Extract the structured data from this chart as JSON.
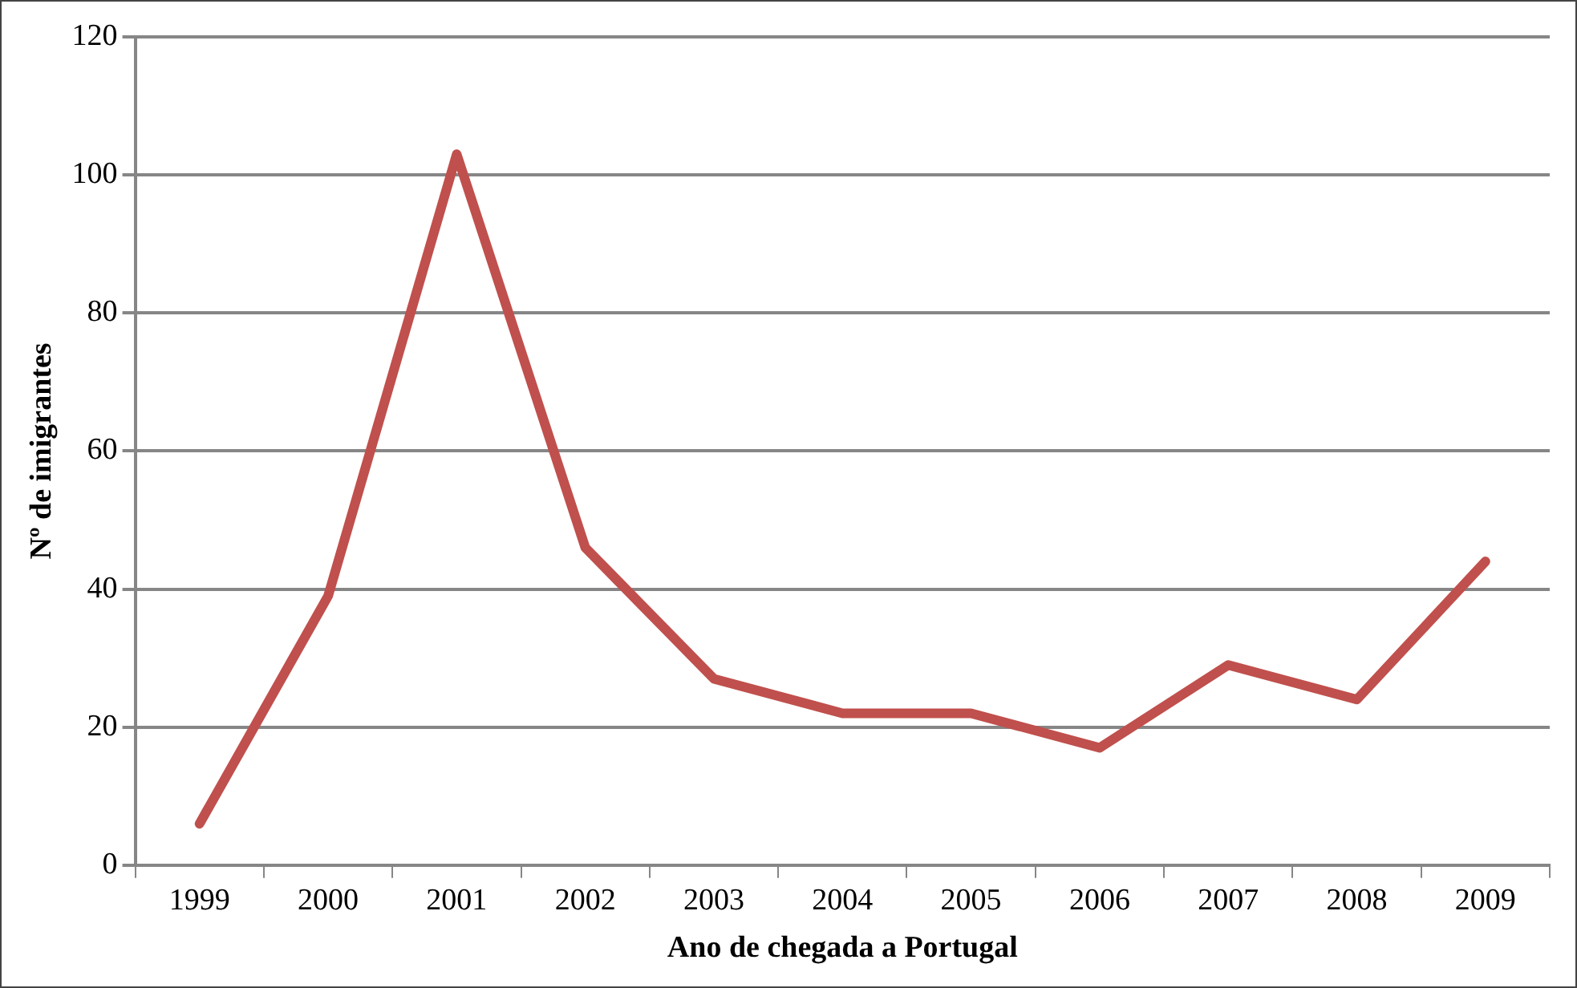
{
  "chart_data": {
    "type": "line",
    "xlabel": "Ano de chegada a Portugal",
    "ylabel": "Nº de imigrantes",
    "categories": [
      "1999",
      "2000",
      "2001",
      "2002",
      "2003",
      "2004",
      "2005",
      "2006",
      "2007",
      "2008",
      "2009"
    ],
    "series": [
      {
        "color": "#c0504d",
        "values": [
          6,
          39,
          103,
          46,
          27,
          22,
          22,
          17,
          29,
          24,
          44
        ]
      }
    ],
    "ylim": [
      0,
      120
    ],
    "yticks": [
      0,
      20,
      40,
      60,
      80,
      100,
      120
    ],
    "grid": "y"
  }
}
